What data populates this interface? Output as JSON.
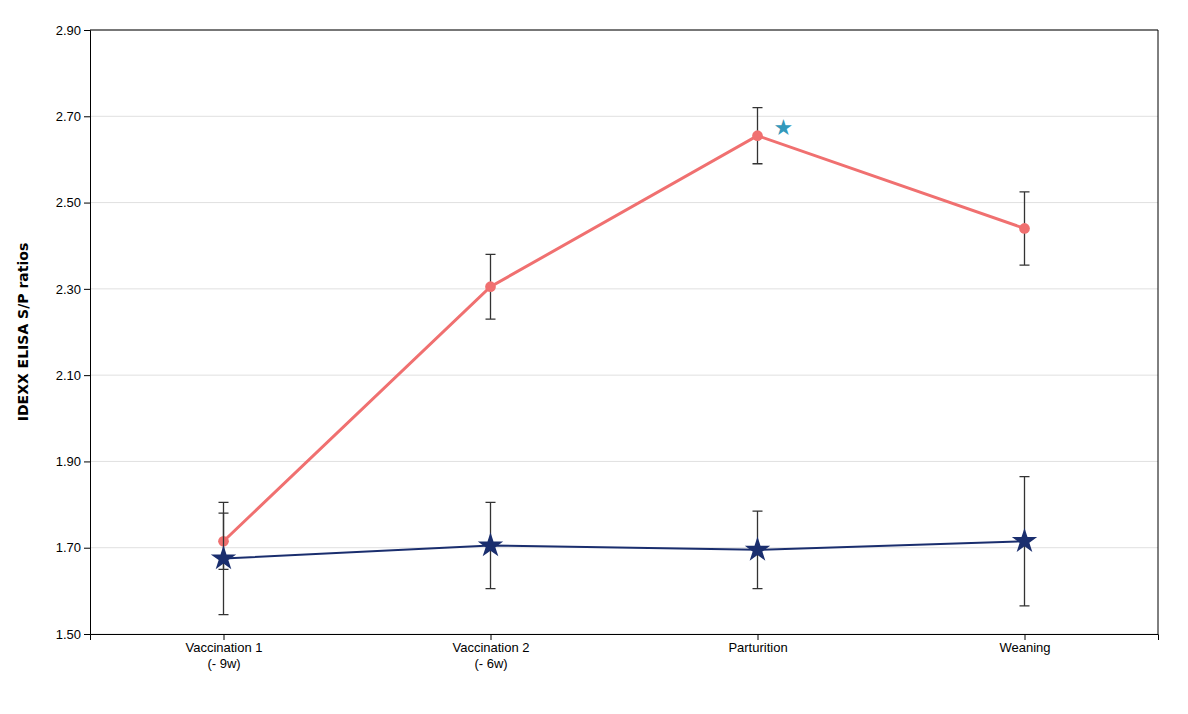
{
  "chart_data": {
    "type": "line",
    "categories": [
      "Vaccination 1\n(- 9w)",
      "Vaccination 2\n(- 6w)",
      "Parturition",
      "Weaning"
    ],
    "series": [
      {
        "color": "#F07070",
        "marker": "circle",
        "values": [
          1.715,
          2.305,
          2.655,
          2.44
        ],
        "yerr": [
          0.065,
          0.075,
          0.065,
          0.085
        ]
      },
      {
        "color": "#1a2e6e",
        "marker": "star",
        "values": [
          1.675,
          1.705,
          1.695,
          1.715
        ],
        "yerr": [
          0.13,
          0.1,
          0.09,
          0.15
        ]
      }
    ],
    "annotations": [
      {
        "text": "★",
        "x": 2.06,
        "y": 2.675,
        "color": "#3399bb"
      }
    ],
    "ylabel": "IDEXX ELISA S/P ratios",
    "ylim": [
      1.5,
      2.9
    ],
    "yticks": [
      {
        "value": 1.5,
        "label": "1.50"
      },
      {
        "value": 1.7,
        "label": "1.70"
      },
      {
        "value": 1.9,
        "label": "1.90"
      },
      {
        "value": 2.1,
        "label": "2.10"
      },
      {
        "value": 2.3,
        "label": "2.30"
      },
      {
        "value": 2.5,
        "label": "2.50"
      },
      {
        "value": 2.7,
        "label": "2.70"
      },
      {
        "value": 2.9,
        "label": "2.90"
      }
    ],
    "grid": true
  }
}
